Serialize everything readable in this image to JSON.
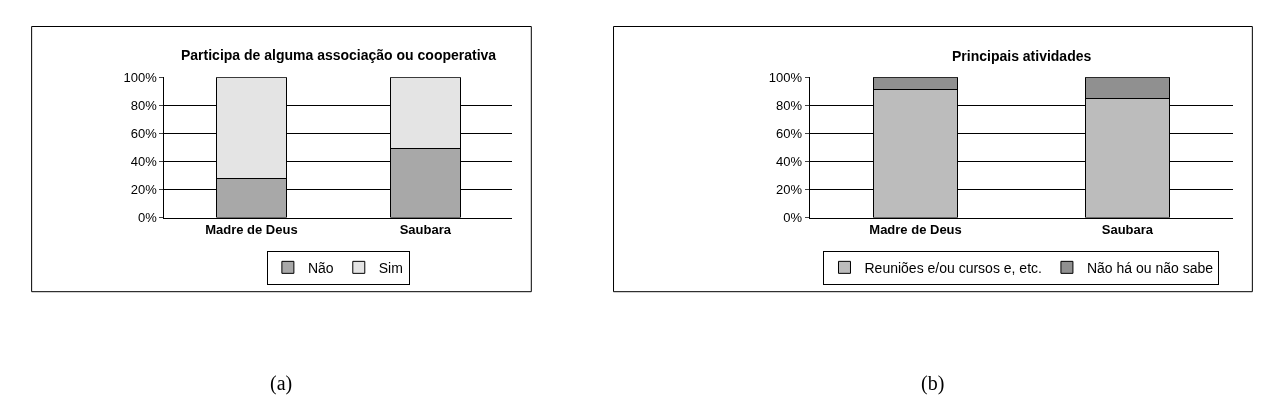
{
  "chart_data": [
    {
      "type": "bar",
      "title": "Participa de alguma associação ou cooperativa",
      "categories": [
        "Madre de Deus",
        "Saubara"
      ],
      "stacked": true,
      "series": [
        {
          "name": "Não",
          "color": "#a8a8a8",
          "values": [
            28,
            49
          ]
        },
        {
          "name": "Sim",
          "color": "#e4e4e4",
          "values": [
            72,
            51
          ]
        }
      ],
      "ylim": [
        0,
        100
      ],
      "yticks": [
        {
          "value": 0,
          "label": "0%"
        },
        {
          "value": 20,
          "label": "20%"
        },
        {
          "value": 40,
          "label": "40%"
        },
        {
          "value": 60,
          "label": "60%"
        },
        {
          "value": 80,
          "label": "80%"
        },
        {
          "value": 100,
          "label": "100%"
        }
      ],
      "grid": "y",
      "legend": "bottom",
      "annotations": [
        "(a)"
      ]
    },
    {
      "type": "bar",
      "title": "Principais atividades",
      "categories": [
        "Madre de Deus",
        "Saubara"
      ],
      "stacked": true,
      "series": [
        {
          "name": "Reuniões e/ou cursos e, etc.",
          "color": "#bcbcbc",
          "values": [
            91,
            85
          ]
        },
        {
          "name": "Não há ou não sabe",
          "color": "#909090",
          "values": [
            9,
            15
          ]
        }
      ],
      "ylim": [
        0,
        100
      ],
      "yticks": [
        {
          "value": 0,
          "label": "0%"
        },
        {
          "value": 20,
          "label": "20%"
        },
        {
          "value": 40,
          "label": "40%"
        },
        {
          "value": 60,
          "label": "60%"
        },
        {
          "value": 80,
          "label": "80%"
        },
        {
          "value": 100,
          "label": "100%"
        }
      ],
      "grid": "y",
      "legend": "bottom",
      "annotations": [
        "(b)"
      ]
    }
  ]
}
